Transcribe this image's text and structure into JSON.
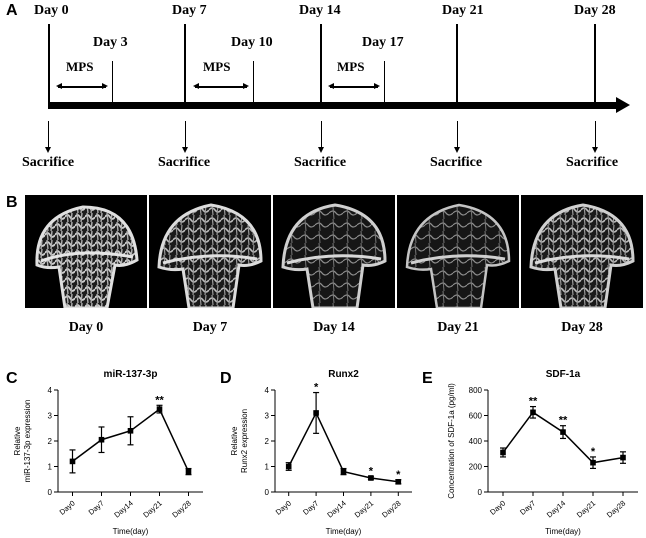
{
  "panels": {
    "A": "A",
    "B": "B",
    "C": "C",
    "D": "D",
    "E": "E"
  },
  "timeline": {
    "days": [
      "Day 0",
      "Day 7",
      "Day 14",
      "Day 21",
      "Day 28"
    ],
    "sub_days": [
      "Day 3",
      "Day 10",
      "Day 17"
    ],
    "mps": [
      "MPS",
      "MPS",
      "MPS"
    ],
    "sacrifice": [
      "Sacrifice",
      "Sacrifice",
      "Sacrifice",
      "Sacrifice",
      "Sacrifice"
    ]
  },
  "images": {
    "captions": [
      "Day 0",
      "Day 7",
      "Day 14",
      "Day 21",
      "Day 28"
    ]
  },
  "chart_data": [
    {
      "type": "line",
      "title": "miR-137-3p",
      "ylabel": [
        "Relative",
        "miR-137-3p expression"
      ],
      "xlabel": "Time(day)",
      "categories": [
        "Day0",
        "Day7",
        "Day14",
        "Day21",
        "Day28"
      ],
      "values": [
        1.2,
        2.05,
        2.4,
        3.25,
        0.8
      ],
      "errors": [
        0.45,
        0.5,
        0.55,
        0.15,
        0.12
      ],
      "annotations": [
        "",
        "",
        "",
        "**",
        ""
      ],
      "ylim": [
        0,
        4
      ],
      "yticks": [
        "0",
        "1",
        "2",
        "3",
        "4"
      ]
    },
    {
      "type": "line",
      "title": "Runx2",
      "ylabel": [
        "Relative",
        "Runx2 expression"
      ],
      "xlabel": "Time(day)",
      "categories": [
        "Day0",
        "Day7",
        "Day14",
        "Day21",
        "Day28"
      ],
      "values": [
        1.0,
        3.1,
        0.8,
        0.55,
        0.4
      ],
      "errors": [
        0.15,
        0.8,
        0.12,
        0.05,
        0.08
      ],
      "annotations": [
        "",
        "*",
        "",
        "*",
        "*"
      ],
      "ylim": [
        0,
        4
      ],
      "yticks": [
        "0",
        "1",
        "2",
        "3",
        "4"
      ]
    },
    {
      "type": "line",
      "title": "SDF-1a",
      "ylabel": [
        "Concentration of SDF-1a (pg/ml)"
      ],
      "xlabel": "Time(day)",
      "categories": [
        "Day0",
        "Day7",
        "Day14",
        "Day21",
        "Day28"
      ],
      "values": [
        310,
        625,
        470,
        230,
        270
      ],
      "errors": [
        35,
        45,
        50,
        45,
        45
      ],
      "annotations": [
        "",
        "**",
        "**",
        "*",
        ""
      ],
      "ylim": [
        0,
        800
      ],
      "yticks": [
        "0",
        "200",
        "400",
        "600",
        "800"
      ]
    }
  ]
}
